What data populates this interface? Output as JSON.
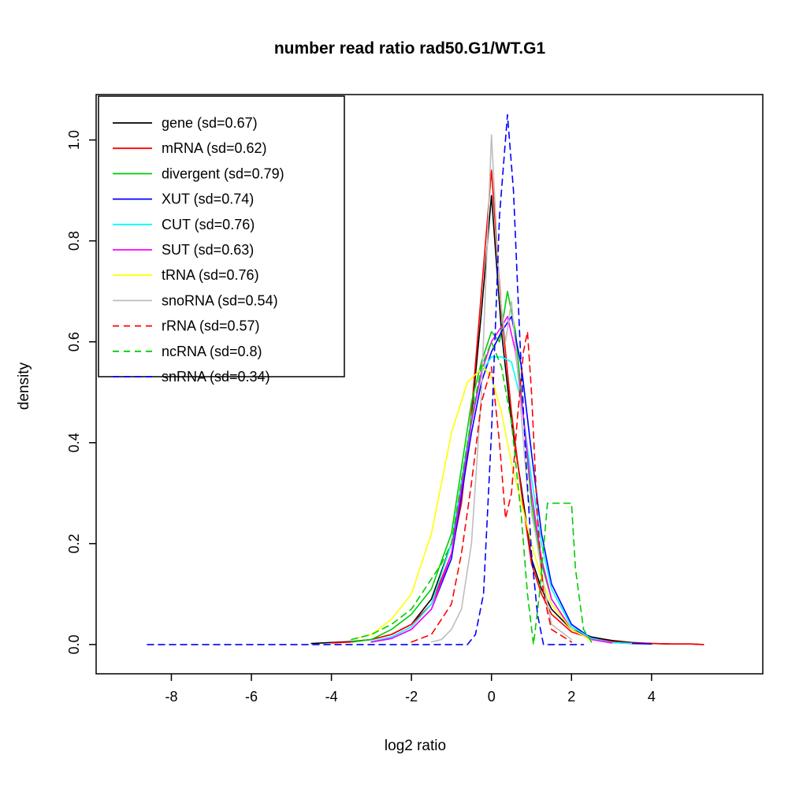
{
  "title": "number read ratio rad50.G1/WT.G1",
  "chart_data": {
    "type": "line",
    "title": "number read ratio rad50.G1/WT.G1",
    "xlabel": "log2 ratio",
    "ylabel": "density",
    "xlim": [
      -9.88,
      6.78
    ],
    "ylim": [
      -0.058,
      1.09
    ],
    "grid": false,
    "legend_position": "top-left",
    "x_ticks": [
      -8,
      -6,
      -4,
      -2,
      0,
      2,
      4
    ],
    "x_tick_labels": [
      "-8",
      "-6",
      "-4",
      "-2",
      "0",
      "2",
      "4"
    ],
    "y_ticks": [
      0.0,
      0.2,
      0.4,
      0.6,
      0.8,
      1.0
    ],
    "y_tick_labels": [
      "0.0",
      "0.2",
      "0.4",
      "0.6",
      "0.8",
      "1.0"
    ],
    "series": [
      {
        "name": "gene",
        "legend_label": "gene (sd=0.67)",
        "color": "#000000",
        "dashed": false,
        "x": [
          -4.5,
          -4,
          -3.5,
          -3,
          -2.5,
          -2,
          -1.5,
          -1,
          -0.75,
          -0.5,
          -0.25,
          0,
          0.25,
          0.5,
          0.75,
          1,
          1.25,
          1.5,
          2,
          2.5,
          3,
          3.5,
          4,
          4.5,
          5,
          5.3
        ],
        "y": [
          0.002,
          0.004,
          0.006,
          0.01,
          0.02,
          0.04,
          0.09,
          0.2,
          0.3,
          0.45,
          0.66,
          0.89,
          0.62,
          0.44,
          0.31,
          0.17,
          0.11,
          0.07,
          0.03,
          0.015,
          0.008,
          0.004,
          0.002,
          0.001,
          0.001,
          0
        ]
      },
      {
        "name": "mRNA",
        "legend_label": "mRNA (sd=0.62)",
        "color": "#FF0000",
        "dashed": false,
        "x": [
          -4,
          -3.5,
          -3,
          -2.5,
          -2,
          -1.5,
          -1,
          -0.75,
          -0.5,
          -0.25,
          0,
          0.25,
          0.5,
          0.75,
          1,
          1.25,
          1.5,
          2,
          2.5,
          3,
          3.5,
          4,
          4.5,
          5,
          5.3
        ],
        "y": [
          0.003,
          0.005,
          0.01,
          0.02,
          0.04,
          0.08,
          0.18,
          0.28,
          0.46,
          0.7,
          0.94,
          0.66,
          0.46,
          0.3,
          0.16,
          0.1,
          0.06,
          0.025,
          0.012,
          0.006,
          0.003,
          0.002,
          0.001,
          0.001,
          0
        ]
      },
      {
        "name": "divergent",
        "legend_label": "divergent (sd=0.79)",
        "color": "#00CD00",
        "dashed": false,
        "x": [
          -3.5,
          -3,
          -2.5,
          -2,
          -1.5,
          -1,
          -0.5,
          -0.25,
          0,
          0.2,
          0.4,
          0.6,
          0.8,
          1,
          1.25,
          1.5,
          2,
          2.5,
          3
        ],
        "y": [
          0.005,
          0.01,
          0.03,
          0.06,
          0.11,
          0.22,
          0.48,
          0.56,
          0.62,
          0.6,
          0.7,
          0.62,
          0.45,
          0.28,
          0.16,
          0.09,
          0.03,
          0.01,
          0.004
        ]
      },
      {
        "name": "XUT",
        "legend_label": "XUT (sd=0.74)",
        "color": "#0000FF",
        "dashed": false,
        "x": [
          -3,
          -2.5,
          -2,
          -1.5,
          -1,
          -0.5,
          -0.25,
          0,
          0.25,
          0.5,
          0.75,
          1,
          1.25,
          1.5,
          2,
          2.5,
          3,
          3.5,
          4
        ],
        "y": [
          0.005,
          0.012,
          0.03,
          0.07,
          0.17,
          0.42,
          0.52,
          0.58,
          0.62,
          0.65,
          0.55,
          0.38,
          0.22,
          0.12,
          0.04,
          0.012,
          0.004,
          0.002,
          0.001
        ]
      },
      {
        "name": "CUT",
        "legend_label": "CUT (sd=0.76)",
        "color": "#00FFFF",
        "dashed": false,
        "x": [
          -3,
          -2.5,
          -2,
          -1.5,
          -1,
          -0.5,
          -0.25,
          0,
          0.25,
          0.5,
          0.75,
          1,
          1.25,
          1.5,
          2,
          2.5,
          3,
          3.5
        ],
        "y": [
          0.006,
          0.015,
          0.035,
          0.08,
          0.2,
          0.45,
          0.54,
          0.57,
          0.57,
          0.56,
          0.48,
          0.33,
          0.2,
          0.11,
          0.035,
          0.012,
          0.004,
          0.002
        ]
      },
      {
        "name": "SUT",
        "legend_label": "SUT (sd=0.63)",
        "color": "#FF00FF",
        "dashed": false,
        "x": [
          -3,
          -2.5,
          -2,
          -1.5,
          -1,
          -0.5,
          -0.25,
          0,
          0.25,
          0.4,
          0.6,
          0.8,
          1,
          1.25,
          1.5,
          2,
          2.5,
          3
        ],
        "y": [
          0.005,
          0.012,
          0.03,
          0.07,
          0.18,
          0.44,
          0.54,
          0.6,
          0.63,
          0.65,
          0.58,
          0.45,
          0.3,
          0.17,
          0.09,
          0.03,
          0.01,
          0.003
        ]
      },
      {
        "name": "tRNA",
        "legend_label": "tRNA (sd=0.76)",
        "color": "#FFFF00",
        "dashed": false,
        "x": [
          -3.5,
          -3,
          -2.5,
          -2,
          -1.5,
          -1,
          -0.6,
          -0.2,
          0,
          0.25,
          0.5,
          0.75,
          1,
          1.25,
          1.5,
          2,
          2.5
        ],
        "y": [
          0.01,
          0.02,
          0.05,
          0.1,
          0.22,
          0.42,
          0.52,
          0.55,
          0.53,
          0.46,
          0.36,
          0.28,
          0.2,
          0.13,
          0.08,
          0.03,
          0.008
        ]
      },
      {
        "name": "snoRNA",
        "legend_label": "snoRNA (sd=0.54)",
        "color": "#BEBEBE",
        "dashed": false,
        "x": [
          -1.5,
          -1.25,
          -1,
          -0.75,
          -0.5,
          -0.25,
          0,
          0.2,
          0.35,
          0.5,
          0.7,
          0.9,
          1.1,
          1.3,
          1.5,
          2
        ],
        "y": [
          0.005,
          0.01,
          0.03,
          0.07,
          0.2,
          0.5,
          1.01,
          0.7,
          0.6,
          0.68,
          0.5,
          0.3,
          0.22,
          0.12,
          0.04,
          0.01
        ]
      },
      {
        "name": "rRNA",
        "legend_label": "rRNA (sd=0.57)",
        "color": "#FF0000",
        "dashed": true,
        "x": [
          -2,
          -1.5,
          -1,
          -0.75,
          -0.5,
          -0.25,
          0,
          0.2,
          0.35,
          0.5,
          0.65,
          0.8,
          0.9,
          1,
          1.15,
          1.3,
          1.5,
          2
        ],
        "y": [
          0.005,
          0.02,
          0.08,
          0.18,
          0.32,
          0.48,
          0.55,
          0.4,
          0.25,
          0.3,
          0.45,
          0.58,
          0.62,
          0.5,
          0.25,
          0.1,
          0.03,
          0.005
        ]
      },
      {
        "name": "ncRNA",
        "legend_label": "ncRNA (sd=0.8)",
        "color": "#00CD00",
        "dashed": true,
        "x": [
          -3.5,
          -3,
          -2.5,
          -2,
          -1.5,
          -1.25,
          -1,
          -0.5,
          -0.25,
          0,
          0.25,
          0.5,
          0.75,
          0.9,
          1.05,
          1.2,
          1.4,
          1.6,
          1.8,
          2,
          2.1,
          2.3,
          2.5
        ],
        "y": [
          0.01,
          0.02,
          0.04,
          0.07,
          0.13,
          0.16,
          0.2,
          0.45,
          0.55,
          0.6,
          0.55,
          0.44,
          0.25,
          0.1,
          0,
          0.1,
          0.28,
          0.28,
          0.28,
          0.28,
          0.15,
          0.03,
          0.005
        ]
      },
      {
        "name": "snRNA",
        "legend_label": "snRNA (sd=0.34)",
        "color": "#0000FF",
        "dashed": true,
        "x": [
          -8.6,
          -7,
          -6,
          -5,
          -4,
          -3,
          -2,
          -1,
          -0.6,
          -0.4,
          -0.2,
          0,
          0.2,
          0.4,
          0.55,
          0.7,
          0.85,
          1,
          1.15,
          1.3,
          1.5,
          2,
          2.3
        ],
        "y": [
          0,
          0,
          0,
          0,
          0,
          0,
          0,
          0,
          0,
          0.02,
          0.1,
          0.42,
          0.85,
          1.05,
          0.9,
          0.62,
          0.38,
          0.18,
          0.06,
          0,
          0,
          0,
          0
        ]
      }
    ]
  }
}
